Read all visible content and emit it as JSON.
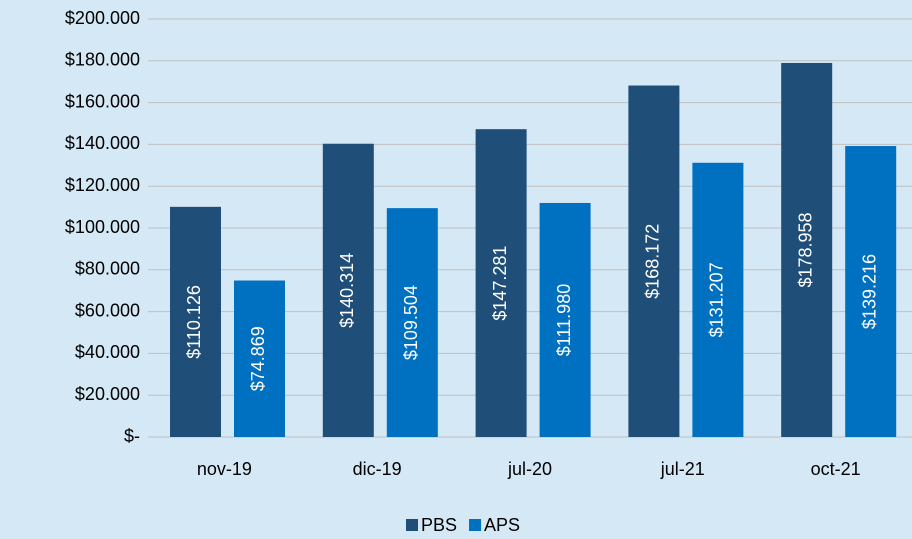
{
  "chart_data": {
    "type": "bar",
    "categories": [
      "nov-19",
      "dic-19",
      "jul-20",
      "jul-21",
      "oct-21"
    ],
    "series": [
      {
        "name": "PBS",
        "color": "#1f4e79",
        "values": [
          110126,
          140314,
          147281,
          168172,
          178958
        ],
        "value_labels": [
          "$110.126",
          "$140.314",
          "$147.281",
          "$168.172",
          "$178.958"
        ]
      },
      {
        "name": "APS",
        "color": "#0070c0",
        "values": [
          74869,
          109504,
          111980,
          131207,
          139216
        ],
        "value_labels": [
          "$74.869",
          "$109.504",
          "$111.980",
          "$131.207",
          "$139.216"
        ]
      }
    ],
    "ylim": [
      0,
      200000
    ],
    "yticks": [
      {
        "value": 0,
        "label": "$-"
      },
      {
        "value": 20000,
        "label": "$20.000"
      },
      {
        "value": 40000,
        "label": "$40.000"
      },
      {
        "value": 60000,
        "label": "$60.000"
      },
      {
        "value": 80000,
        "label": "$80.000"
      },
      {
        "value": 100000,
        "label": "$100.000"
      },
      {
        "value": 120000,
        "label": "$120.000"
      },
      {
        "value": 140000,
        "label": "$140.000"
      },
      {
        "value": 160000,
        "label": "$160.000"
      },
      {
        "value": 180000,
        "label": "$180.000"
      },
      {
        "value": 200000,
        "label": "$200.000"
      }
    ],
    "grid": true,
    "legend": "bottom"
  }
}
